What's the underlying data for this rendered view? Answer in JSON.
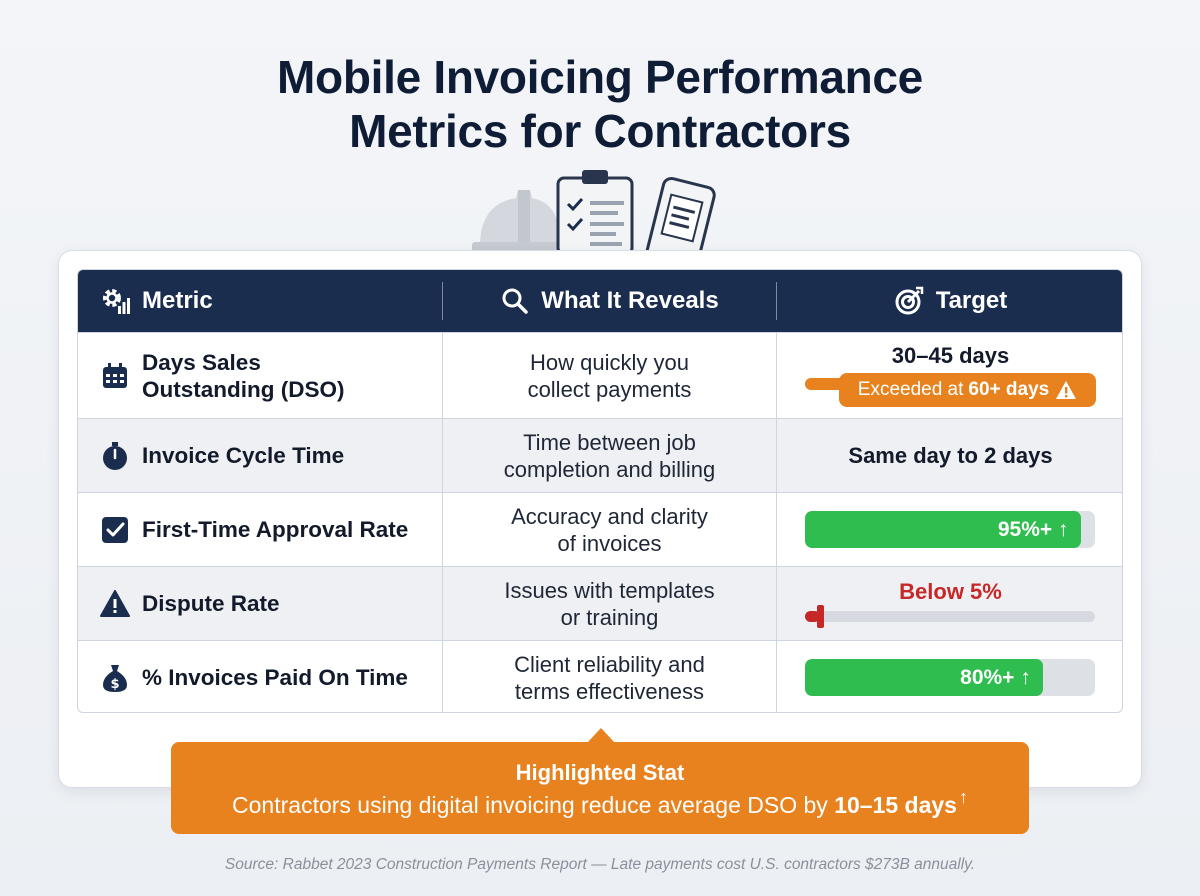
{
  "title_line1": "Mobile Invoicing Performance",
  "title_line2": "Metrics for Contractors",
  "colors": {
    "header_bg": "#1b2d4f",
    "accent_orange": "#e8821e",
    "good_green": "#2fbd4f",
    "alert_red": "#c62828"
  },
  "illustration": {
    "icons": [
      "hard-hat-icon",
      "clipboard-checklist-icon",
      "phone-invoice-icon"
    ]
  },
  "table": {
    "headers": [
      {
        "label": "Metric",
        "icon": "gear-chart-icon"
      },
      {
        "label": "What It Reveals",
        "icon": "magnifier-icon"
      },
      {
        "label": "Target",
        "icon": "target-icon"
      }
    ],
    "rows": [
      {
        "icon": "calendar-icon",
        "metric_line1": "Days Sales",
        "metric_line2": "Outstanding (DSO)",
        "reveals_line1": "How quickly you",
        "reveals_line2": "collect payments",
        "target": "30–45 days",
        "warning_prefix": "Exceeded at",
        "warning_value": "60+ days"
      },
      {
        "icon": "stopwatch-icon",
        "metric": "Invoice Cycle Time",
        "reveals_line1": "Time between job",
        "reveals_line2": "completion and billing",
        "target": "Same day to 2 days"
      },
      {
        "icon": "checkbox-icon",
        "metric": "First-Time Approval Rate",
        "reveals_line1": "Accuracy and clarity",
        "reveals_line2": "of invoices",
        "target": "95%+ ↑",
        "progress": 0.95
      },
      {
        "icon": "warning-triangle-icon",
        "metric": "Dispute Rate",
        "reveals_line1": "Issues with templates",
        "reveals_line2": "or training",
        "target": "Below 5%",
        "progress": 0.05
      },
      {
        "icon": "money-bag-icon",
        "metric": "% Invoices Paid On Time",
        "reveals_line1": "Client reliability and",
        "reveals_line2": "terms effectiveness",
        "target": "80%+ ↑",
        "progress": 0.82
      }
    ]
  },
  "callout": {
    "title": "Highlighted Stat",
    "text": "Contractors using digital invoicing reduce average DSO by",
    "value": "10–15 days",
    "arrow": "↑"
  },
  "source": "Source: Rabbet 2023 Construction Payments Report — Late payments cost U.S. contractors $273B annually."
}
